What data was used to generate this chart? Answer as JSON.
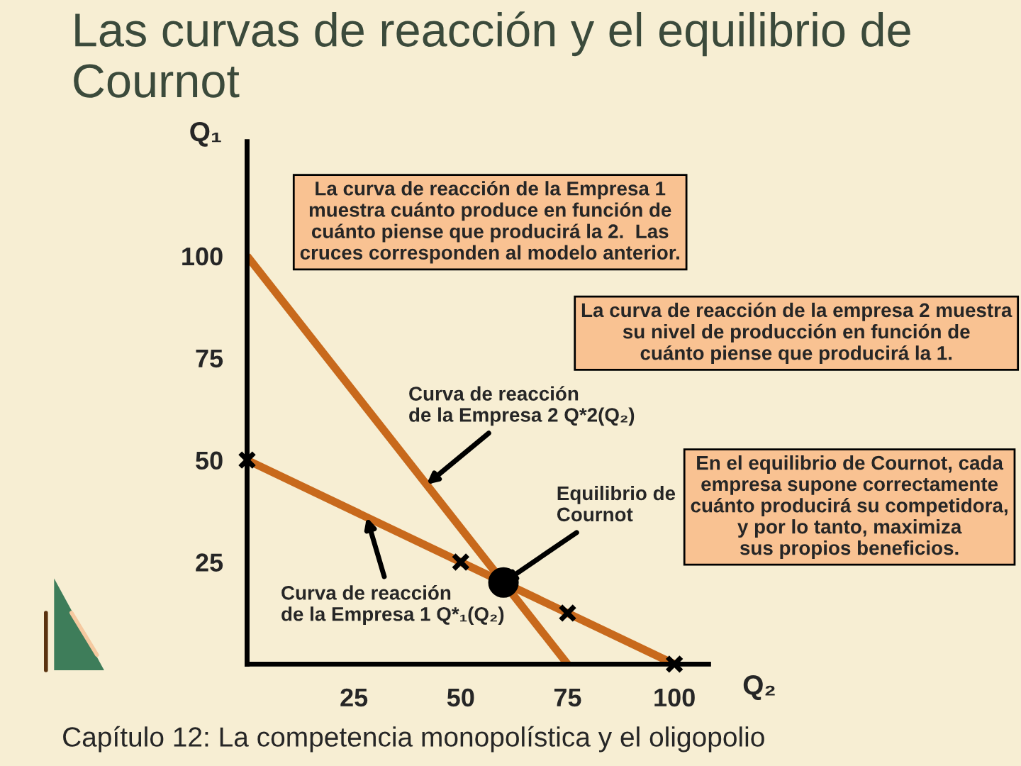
{
  "chart_data": {
    "type": "line",
    "title": "Las curvas de reacción y el equilibrio de Cournot",
    "xlabel": "Q₂",
    "ylabel": "Q₁",
    "xlim": [
      0,
      108
    ],
    "ylim": [
      0,
      128
    ],
    "xticks": [
      25,
      50,
      75,
      100
    ],
    "yticks": [
      25,
      50,
      75,
      100
    ],
    "series": [
      {
        "color": "#c8691c",
        "x": [
          0,
          75
        ],
        "values": [
          100,
          0
        ]
      },
      {
        "color": "#c8691c",
        "x": [
          0,
          100
        ],
        "values": [
          50,
          0
        ]
      },
      {
        "type": "scatter",
        "marker": "cross",
        "color": "#000000",
        "x": [
          0,
          50,
          75,
          100
        ],
        "values": [
          50,
          25,
          12.5,
          0
        ]
      },
      {
        "type": "scatter",
        "marker": "circle",
        "color": "#000000",
        "x": [
          60
        ],
        "values": [
          20
        ]
      }
    ],
    "annotations": [
      "La curva de reacción de la Empresa 1\nmuestra cuánto produce en función de\ncuánto piense que producirá la 2.  Las\ncruces corresponden al modelo anterior.",
      "La curva de reacción de la empresa 2 muestra\nsu nivel de producción en función de\ncuánto piense que producirá la 1.",
      {
        "text": "Curva de reacción\nde la Empresa 2 Q*2(Q₂)",
        "x": 42,
        "y": 44
      },
      {
        "text": "Curva de reacción\nde la Empresa 1 Q*₁(Q₂)",
        "x": 28,
        "y": 36
      },
      {
        "text": "Equilibrio de\nCournot",
        "x": 60,
        "y": 20
      },
      "En el equilibrio de Cournot, cada\nempresa supone correctamente\ncuánto producirá su competidora,\ny por lo tanto, maximiza\nsus propios beneficios.",
      "Capítulo 12: La competencia monopolística y el oligopolio"
    ]
  }
}
